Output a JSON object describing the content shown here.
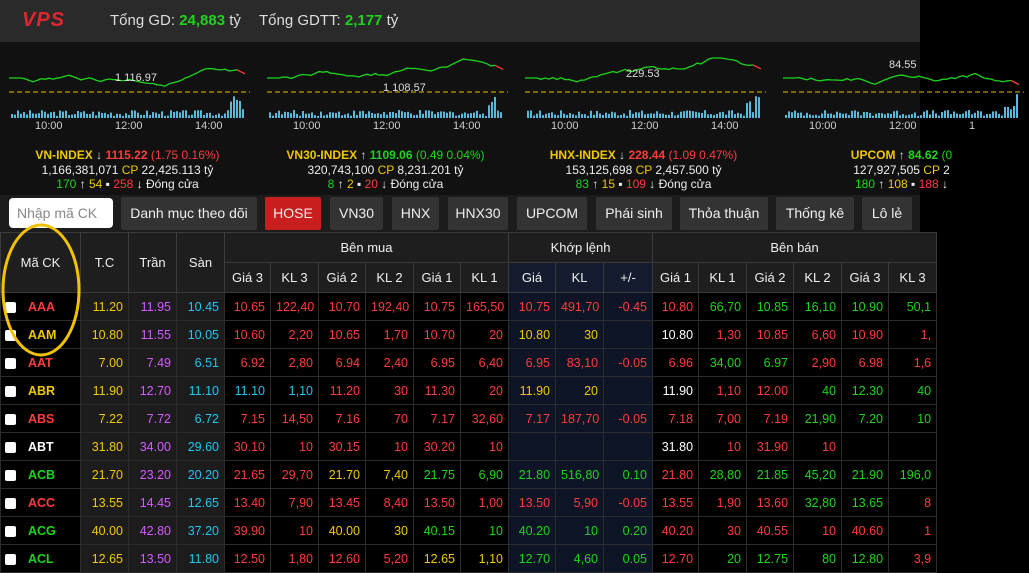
{
  "header": {
    "logo": "VPS",
    "total_label": "Tổng GD:",
    "total_value": "24,883",
    "total_unit": "tỷ",
    "put_label": "Tổng GDTT:",
    "put_value": "2,177",
    "put_unit": "tỷ"
  },
  "indices": [
    {
      "ref_label": "1 116.97",
      "times": [
        "10:00",
        "12:00",
        "14:00"
      ],
      "name": "VN-INDEX",
      "value": "1115.22",
      "change": "(1.75 0.16%)",
      "volume": "1,166,381,071",
      "cp": "CP",
      "amount": "22,425.113",
      "unit": "tỷ",
      "up": "170",
      "ref": "54",
      "down": "258",
      "status": "Đóng cửa",
      "trend": "down"
    },
    {
      "ref_label": "1 108.57",
      "times": [
        "10:00",
        "12:00",
        "14:00"
      ],
      "name": "VN30-INDEX",
      "value": "1109.06",
      "change": "(0.49 0.04%)",
      "volume": "320,743,100",
      "cp": "CP",
      "amount": "8,231.201",
      "unit": "tỷ",
      "up": "8",
      "ref": "2",
      "down": "20",
      "status": "Đóng cửa",
      "trend": "up"
    },
    {
      "ref_label": "229.53",
      "times": [
        "10:00",
        "12:00",
        "14:00"
      ],
      "name": "HNX-INDEX",
      "value": "228.44",
      "change": "(1.09 0.47%)",
      "volume": "153,125,698",
      "cp": "CP",
      "amount": "2,457.500",
      "unit": "tỷ",
      "up": "83",
      "ref": "15",
      "down": "109",
      "status": "Đóng cửa",
      "trend": "down"
    },
    {
      "ref_label": "84.55",
      "times": [
        "10:00",
        "12:00",
        "1"
      ],
      "name": "UPCOM",
      "value": "84.62",
      "change": "(0",
      "volume": "127,927,505",
      "cp": "CP",
      "amount": "2",
      "unit": "",
      "up": "180",
      "ref": "108",
      "down": "188",
      "status": "",
      "trend": "up"
    }
  ],
  "tabs": {
    "search_placeholder": "Nhập mã CK",
    "items": [
      "Danh mục theo dõi",
      "HOSE",
      "VN30",
      "HNX",
      "HNX30",
      "UPCOM",
      "Phái sinh",
      "Thỏa thuận",
      "Thống kê",
      "Lô lẻ"
    ],
    "active": 1
  },
  "table": {
    "symbol": "Mã CK",
    "ref": "T.C",
    "ceiling": "Trần",
    "floor": "Sàn",
    "buy": "Bên mua",
    "match": "Khớp lệnh",
    "sell": "Bên bán",
    "columns": [
      "Giá 3",
      "KL 3",
      "Giá 2",
      "KL 2",
      "Giá 1",
      "KL 1",
      "Giá",
      "KL",
      "+/-",
      "Giá 1",
      "KL 1",
      "Giá 2",
      "KL 2",
      "Giá 3",
      "KL 3"
    ],
    "rows": [
      [
        "AAA",
        "11.20",
        "11.95",
        "10.45",
        "10.65",
        "122,40",
        "10.70",
        "192,40",
        "10.75",
        "165,50",
        "10.75",
        "491,70",
        "-0.45",
        "10.80",
        "66,70",
        "10.85",
        "16,10",
        "10.90",
        "50,1"
      ],
      [
        "AAM",
        "10.80",
        "11.55",
        "10.05",
        "10.60",
        "2,20",
        "10.65",
        "1,70",
        "10.70",
        "20",
        "10.80",
        "30",
        "",
        "10.80",
        "1,30",
        "10.85",
        "6,60",
        "10.90",
        "1,"
      ],
      [
        "AAT",
        "7.00",
        "7.49",
        "6.51",
        "6.92",
        "2,80",
        "6.94",
        "2,40",
        "6.95",
        "6,40",
        "6.95",
        "83,10",
        "-0.05",
        "6.96",
        "34,00",
        "6.97",
        "2,90",
        "6.98",
        "1,6"
      ],
      [
        "ABR",
        "11.90",
        "12.70",
        "11.10",
        "11.10",
        "1,10",
        "11.20",
        "30",
        "11.30",
        "20",
        "11.90",
        "20",
        "",
        "11.90",
        "1,10",
        "12.00",
        "40",
        "12.30",
        "40"
      ],
      [
        "ABS",
        "7.22",
        "7.72",
        "6.72",
        "7.15",
        "14,50",
        "7.16",
        "70",
        "7.17",
        "32,60",
        "7.17",
        "187,70",
        "-0.05",
        "7.18",
        "7,00",
        "7.19",
        "21,90",
        "7.20",
        "10"
      ],
      [
        "ABT",
        "31.80",
        "34.00",
        "29.60",
        "30.10",
        "10",
        "30.15",
        "10",
        "30.20",
        "10",
        "",
        "",
        "",
        "31.80",
        "10",
        "31.90",
        "10",
        "",
        ""
      ],
      [
        "ACB",
        "21.70",
        "23.20",
        "20.20",
        "21.65",
        "29,70",
        "21.70",
        "7,40",
        "21.75",
        "6,90",
        "21.80",
        "516,80",
        "0.10",
        "21.80",
        "28,80",
        "21.85",
        "45,20",
        "21.90",
        "196,0"
      ],
      [
        "ACC",
        "13.55",
        "14.45",
        "12.65",
        "13.40",
        "7,90",
        "13.45",
        "8,40",
        "13.50",
        "1,00",
        "13.50",
        "5,90",
        "-0.05",
        "13.55",
        "1,90",
        "13.60",
        "32,80",
        "13.65",
        "8"
      ],
      [
        "ACG",
        "40.00",
        "42.80",
        "37.20",
        "39.90",
        "10",
        "40.00",
        "30",
        "40.15",
        "10",
        "40.20",
        "10",
        "0.20",
        "40.20",
        "30",
        "40.55",
        "10",
        "40.60",
        "1"
      ],
      [
        "ACL",
        "12.65",
        "13.50",
        "11.80",
        "12.50",
        "1,80",
        "12.60",
        "5,20",
        "12.65",
        "1,10",
        "12.70",
        "4,60",
        "0.05",
        "12.70",
        "20",
        "12.75",
        "80",
        "12.80",
        "3,9"
      ]
    ]
  }
}
